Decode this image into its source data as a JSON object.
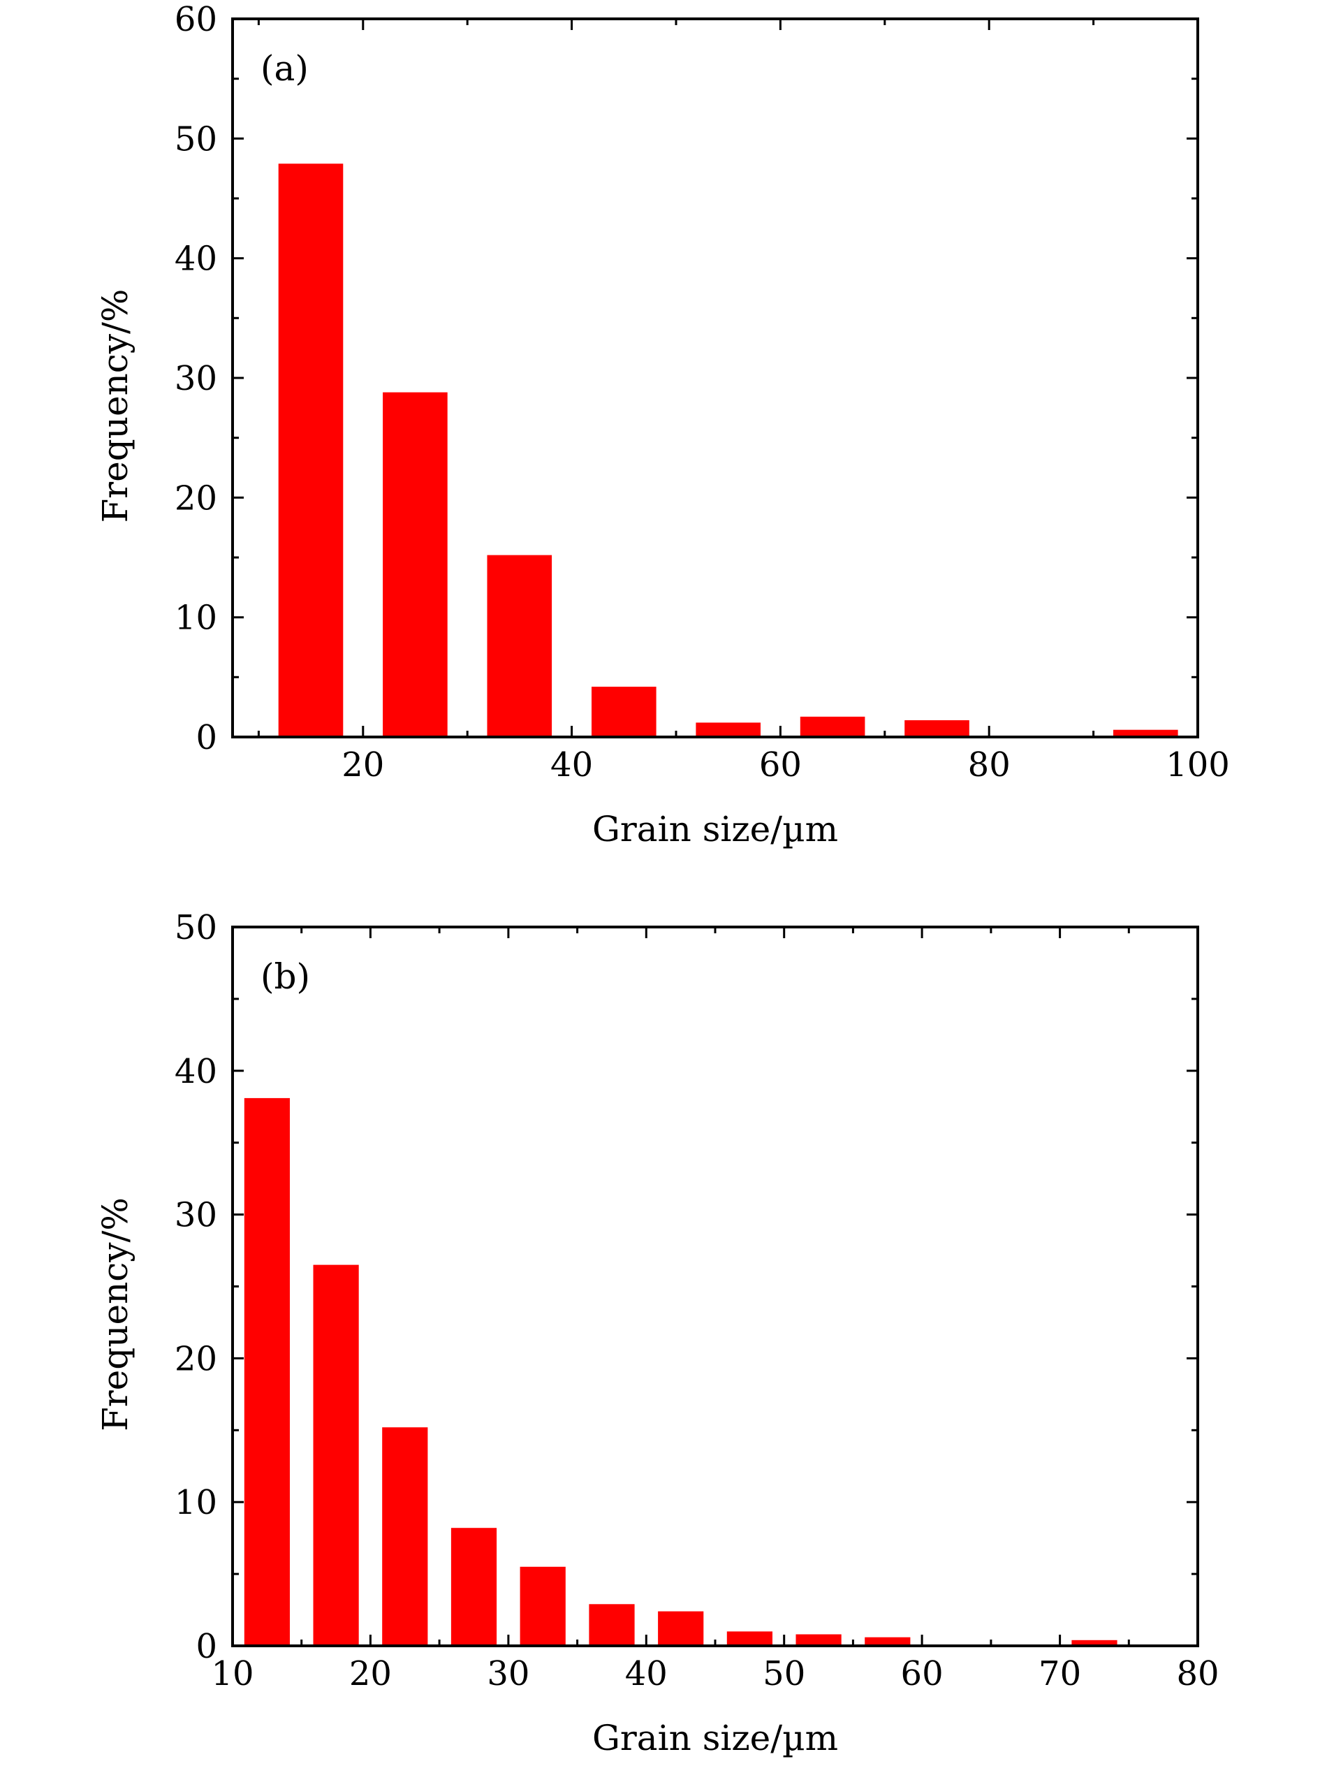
{
  "chart_data": [
    {
      "type": "bar",
      "panel_label": "(a)",
      "xlabel": "Grain size/µm",
      "ylabel": "Frequency/%",
      "xlim": [
        7.5,
        100
      ],
      "ylim": [
        0,
        60
      ],
      "xticks": [
        20,
        40,
        60,
        80,
        100
      ],
      "yticks": [
        0,
        10,
        20,
        30,
        40,
        50,
        60
      ],
      "bar_width": 6.2,
      "x": [
        15,
        25,
        35,
        45,
        55,
        65,
        75,
        85,
        95
      ],
      "values": [
        47.9,
        28.8,
        15.2,
        4.2,
        1.2,
        1.7,
        1.4,
        0,
        0.6
      ],
      "color": "#ff0000",
      "grid": false
    },
    {
      "type": "bar",
      "panel_label": "(b)",
      "xlabel": "Grain size/µm",
      "ylabel": "Frequency/%",
      "xlim": [
        10,
        80
      ],
      "ylim": [
        0,
        50
      ],
      "xticks": [
        10,
        20,
        30,
        40,
        50,
        60,
        70,
        80
      ],
      "yticks": [
        0,
        10,
        20,
        30,
        40,
        50
      ],
      "bar_width": 3.3,
      "x": [
        12.5,
        17.5,
        22.5,
        27.5,
        32.5,
        37.5,
        42.5,
        47.5,
        52.5,
        57.5,
        62.5,
        67.5,
        72.5
      ],
      "values": [
        38.1,
        26.5,
        15.2,
        8.2,
        5.5,
        2.9,
        2.4,
        1.0,
        0.8,
        0.6,
        0,
        0,
        0.4
      ],
      "color": "#ff0000",
      "grid": false
    }
  ]
}
